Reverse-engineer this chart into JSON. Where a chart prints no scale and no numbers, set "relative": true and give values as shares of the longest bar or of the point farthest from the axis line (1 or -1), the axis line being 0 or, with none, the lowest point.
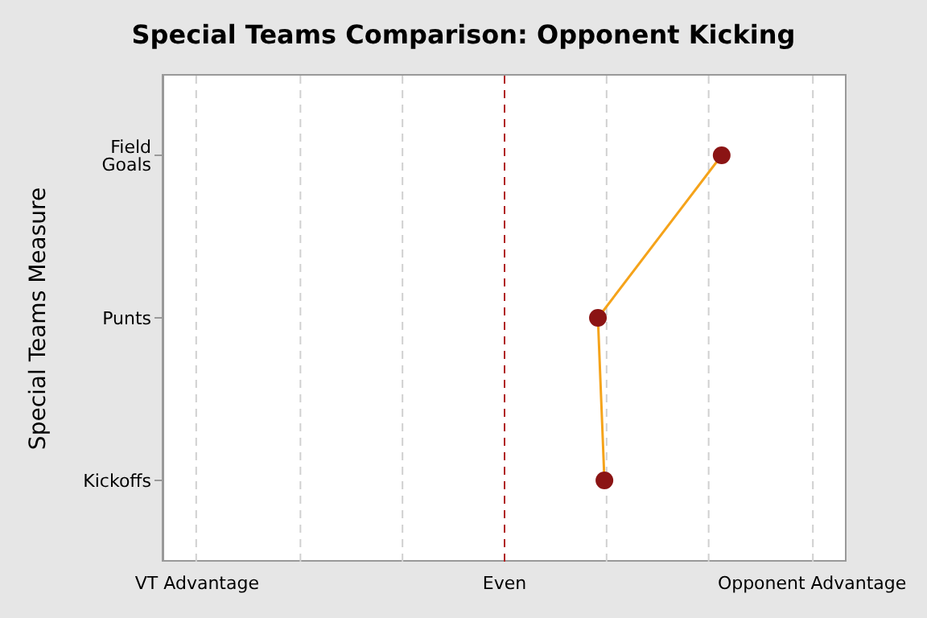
{
  "chart_data": {
    "type": "line",
    "title": "Special Teams Comparison: Opponent Kicking",
    "ylabel": "Special Teams Measure",
    "orientation": "horizontal",
    "relative": true,
    "categories": [
      "Field Goals",
      "Punts",
      "Kickoffs"
    ],
    "series": [
      {
        "color": "#f5a31a",
        "colors": [
          "#8b1414",
          "#8b1414",
          "#8b1414"
        ],
        "values": [
          1,
          0.43,
          0.46
        ]
      }
    ],
    "annotations": [
      "VT Advantage",
      "Even",
      "Opponent Advantage"
    ],
    "ref_lines": [
      {
        "axis": "x",
        "value": -1.42,
        "color": "#d0d0d0",
        "line_style": "dashed"
      },
      {
        "axis": "x",
        "value": -0.94,
        "color": "#d0d0d0",
        "line_style": "dashed"
      },
      {
        "axis": "x",
        "value": -0.47,
        "color": "#d0d0d0",
        "line_style": "dashed"
      },
      {
        "axis": "x",
        "value": 0.47,
        "color": "#d0d0d0",
        "line_style": "dashed"
      },
      {
        "axis": "x",
        "value": 0.94,
        "color": "#d0d0d0",
        "line_style": "dashed"
      },
      {
        "axis": "x",
        "value": 1.42,
        "color": "#d0d0d0",
        "line_style": "dashed"
      },
      {
        "axis": "x",
        "value": 0,
        "color": "#b01c1c",
        "line_style": "dashed"
      }
    ],
    "marker": "circle",
    "line_style": "solid",
    "legend": false
  }
}
